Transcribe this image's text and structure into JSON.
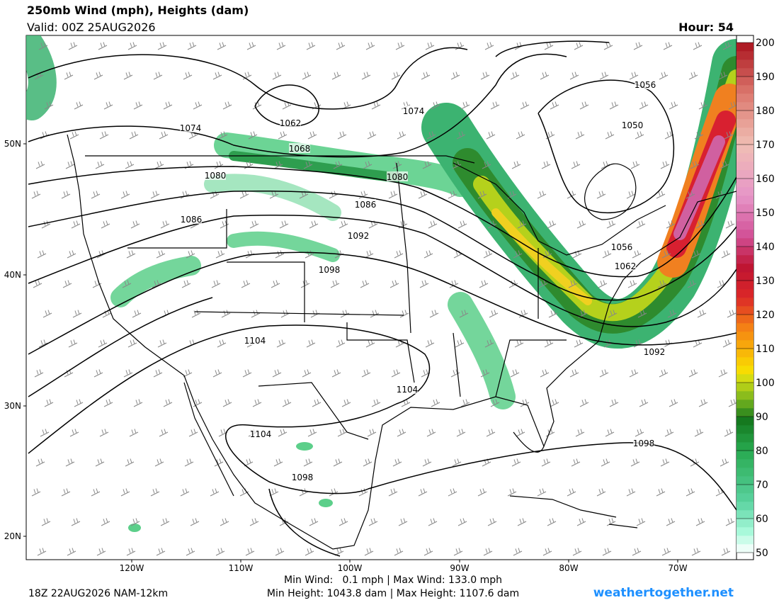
{
  "header": {
    "title": "250mb Wind (mph), Heights (dam)",
    "valid": "Valid: 00Z 25AUG2026",
    "hour": "Hour: 54"
  },
  "colorbar": {
    "ticks": [
      50,
      60,
      70,
      80,
      90,
      100,
      110,
      120,
      130,
      140,
      150,
      160,
      170,
      180,
      190,
      200
    ]
  },
  "map": {
    "lat_labels": [
      "50N",
      "40N",
      "30N",
      "20N"
    ],
    "lon_labels": [
      "120W",
      "110W",
      "100W",
      "90W",
      "80W",
      "70W"
    ],
    "contour_labels": [
      1074,
      1062,
      1068,
      1074,
      1056,
      1050,
      1080,
      1080,
      1086,
      1086,
      1092,
      1098,
      1104,
      1104,
      1104,
      1098,
      1092,
      1098,
      1056,
      1062
    ]
  },
  "footer": {
    "run": "18Z 22AUG2026 NAM-12km",
    "wind_stats": "Min Wind:   0.1 mph | Max Wind: 133.0 mph",
    "height_stats": "Min Height: 1043.8 dam | Max Height: 1107.6 dam",
    "site": "weathertogether.net"
  }
}
